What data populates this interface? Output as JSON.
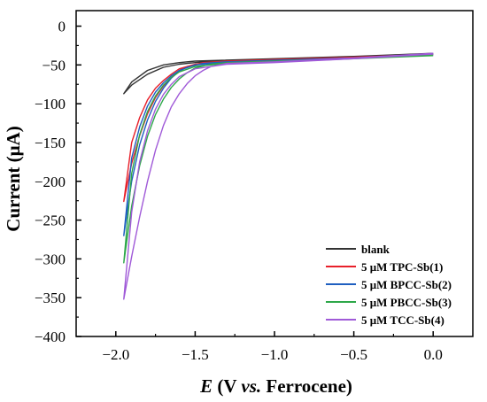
{
  "chart_data": {
    "type": "line",
    "xlabel_prefix": "E",
    "xlabel_rest": " (V ",
    "xlabel_italic": "vs.",
    "xlabel_suffix": " Ferrocene)",
    "ylabel": "Current (μA)",
    "xlim": [
      -2.25,
      0.25
    ],
    "ylim": [
      -400,
      20
    ],
    "x_ticks": [
      -2.0,
      -1.5,
      -1.0,
      -0.5,
      0.0
    ],
    "x_tick_labels": [
      "−2.0",
      "−1.5",
      "−1.0",
      "−0.5",
      "0.0"
    ],
    "y_ticks": [
      0,
      -50,
      -100,
      -150,
      -200,
      -250,
      -300,
      -350,
      -400
    ],
    "y_tick_labels": [
      "0",
      "−50",
      "−100",
      "−150",
      "−200",
      "−250",
      "−300",
      "−350",
      "−400"
    ],
    "grid": false,
    "legend_position": "bottom-right",
    "series": [
      {
        "name": "blank",
        "color": "#333333",
        "forward": [
          [
            0.0,
            -35
          ],
          [
            -0.5,
            -39
          ],
          [
            -1.0,
            -42
          ],
          [
            -1.3,
            -44
          ],
          [
            -1.5,
            -47
          ],
          [
            -1.6,
            -49
          ],
          [
            -1.7,
            -53
          ],
          [
            -1.8,
            -62
          ],
          [
            -1.9,
            -76
          ],
          [
            -1.95,
            -87
          ]
        ],
        "reverse": [
          [
            -1.95,
            -87
          ],
          [
            -1.9,
            -72
          ],
          [
            -1.8,
            -57
          ],
          [
            -1.7,
            -50
          ],
          [
            -1.6,
            -47
          ],
          [
            -1.5,
            -45
          ],
          [
            -1.0,
            -42
          ],
          [
            -0.5,
            -39
          ],
          [
            0.0,
            -36
          ]
        ]
      },
      {
        "name": "5 μM TPC-Sb(1)",
        "color": "#e8202a",
        "forward": [
          [
            0.0,
            -36
          ],
          [
            -0.5,
            -40
          ],
          [
            -1.0,
            -43
          ],
          [
            -1.3,
            -45
          ],
          [
            -1.45,
            -47
          ],
          [
            -1.55,
            -52
          ],
          [
            -1.6,
            -57
          ],
          [
            -1.65,
            -66
          ],
          [
            -1.7,
            -77
          ],
          [
            -1.75,
            -92
          ],
          [
            -1.8,
            -113
          ],
          [
            -1.85,
            -141
          ],
          [
            -1.9,
            -177
          ],
          [
            -1.95,
            -226
          ]
        ],
        "reverse": [
          [
            -1.95,
            -226
          ],
          [
            -1.9,
            -150
          ],
          [
            -1.85,
            -118
          ],
          [
            -1.8,
            -95
          ],
          [
            -1.75,
            -80
          ],
          [
            -1.7,
            -70
          ],
          [
            -1.65,
            -62
          ],
          [
            -1.6,
            -55
          ],
          [
            -1.5,
            -49
          ],
          [
            -1.3,
            -46
          ],
          [
            -1.0,
            -44
          ],
          [
            -0.5,
            -40
          ],
          [
            0.0,
            -37
          ]
        ]
      },
      {
        "name": "5 μM BPCC-Sb(2)",
        "color": "#1f5fc0",
        "forward": [
          [
            0.0,
            -36
          ],
          [
            -0.5,
            -41
          ],
          [
            -1.0,
            -44
          ],
          [
            -1.3,
            -46
          ],
          [
            -1.45,
            -48
          ],
          [
            -1.55,
            -53
          ],
          [
            -1.6,
            -58
          ],
          [
            -1.65,
            -67
          ],
          [
            -1.7,
            -80
          ],
          [
            -1.75,
            -97
          ],
          [
            -1.8,
            -121
          ],
          [
            -1.85,
            -153
          ],
          [
            -1.9,
            -200
          ],
          [
            -1.95,
            -270
          ]
        ],
        "reverse": [
          [
            -1.95,
            -270
          ],
          [
            -1.9,
            -170
          ],
          [
            -1.85,
            -130
          ],
          [
            -1.8,
            -103
          ],
          [
            -1.75,
            -85
          ],
          [
            -1.7,
            -73
          ],
          [
            -1.65,
            -64
          ],
          [
            -1.6,
            -57
          ],
          [
            -1.5,
            -50
          ],
          [
            -1.3,
            -47
          ],
          [
            -1.0,
            -45
          ],
          [
            -0.5,
            -41
          ],
          [
            0.0,
            -37
          ]
        ]
      },
      {
        "name": "5 μM PBCC-Sb(3)",
        "color": "#2ea84a",
        "forward": [
          [
            0.0,
            -37
          ],
          [
            -0.5,
            -42
          ],
          [
            -1.0,
            -45
          ],
          [
            -1.3,
            -47
          ],
          [
            -1.4,
            -49
          ],
          [
            -1.5,
            -54
          ],
          [
            -1.55,
            -60
          ],
          [
            -1.6,
            -68
          ],
          [
            -1.65,
            -79
          ],
          [
            -1.7,
            -94
          ],
          [
            -1.75,
            -114
          ],
          [
            -1.8,
            -142
          ],
          [
            -1.85,
            -180
          ],
          [
            -1.9,
            -232
          ],
          [
            -1.95,
            -305
          ]
        ],
        "reverse": [
          [
            -1.95,
            -305
          ],
          [
            -1.9,
            -190
          ],
          [
            -1.85,
            -140
          ],
          [
            -1.8,
            -110
          ],
          [
            -1.75,
            -90
          ],
          [
            -1.7,
            -76
          ],
          [
            -1.65,
            -66
          ],
          [
            -1.6,
            -59
          ],
          [
            -1.5,
            -52
          ],
          [
            -1.3,
            -48
          ],
          [
            -1.0,
            -46
          ],
          [
            -0.5,
            -42
          ],
          [
            0.0,
            -38
          ]
        ]
      },
      {
        "name": "5 μM TCC-Sb(4)",
        "color": "#a05ad8",
        "forward": [
          [
            0.0,
            -35
          ],
          [
            -0.5,
            -41
          ],
          [
            -1.0,
            -46
          ],
          [
            -1.3,
            -48
          ],
          [
            -1.4,
            -52
          ],
          [
            -1.45,
            -57
          ],
          [
            -1.5,
            -64
          ],
          [
            -1.55,
            -74
          ],
          [
            -1.6,
            -87
          ],
          [
            -1.65,
            -104
          ],
          [
            -1.7,
            -128
          ],
          [
            -1.75,
            -160
          ],
          [
            -1.8,
            -200
          ],
          [
            -1.85,
            -246
          ],
          [
            -1.9,
            -297
          ],
          [
            -1.95,
            -352
          ]
        ],
        "reverse": [
          [
            -1.95,
            -352
          ],
          [
            -1.9,
            -240
          ],
          [
            -1.85,
            -175
          ],
          [
            -1.8,
            -135
          ],
          [
            -1.75,
            -107
          ],
          [
            -1.7,
            -88
          ],
          [
            -1.65,
            -75
          ],
          [
            -1.6,
            -65
          ],
          [
            -1.5,
            -55
          ],
          [
            -1.3,
            -49
          ],
          [
            -1.0,
            -47
          ],
          [
            -0.5,
            -42
          ],
          [
            0.0,
            -36
          ]
        ]
      }
    ]
  }
}
